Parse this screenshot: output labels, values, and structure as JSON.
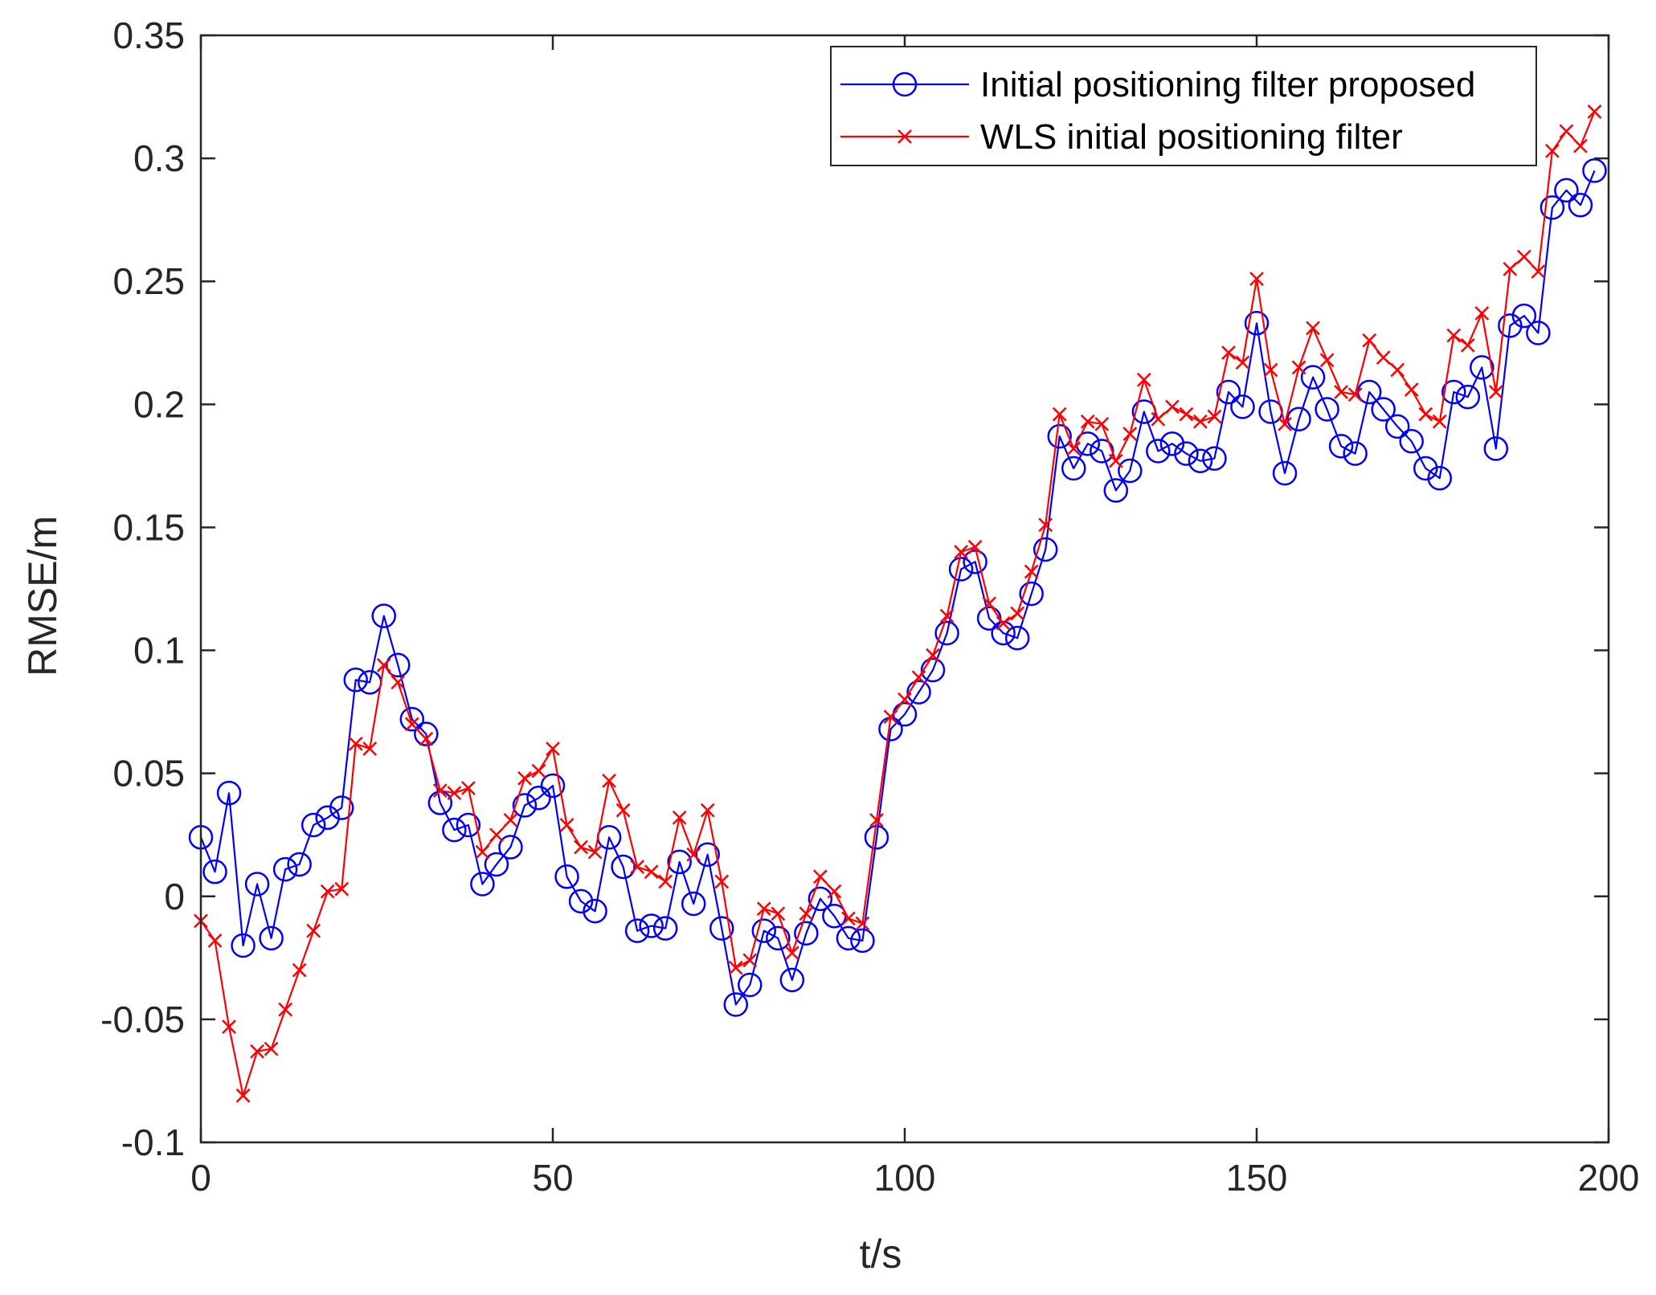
{
  "chart_data": {
    "type": "line",
    "title": "",
    "xlabel": "t/s",
    "ylabel": "RMSE/m",
    "xlim": [
      0,
      200
    ],
    "ylim": [
      -0.1,
      0.35
    ],
    "xticks": [
      0,
      50,
      100,
      150,
      200
    ],
    "xtick_labels": [
      "0",
      "50",
      "100",
      "150",
      "200"
    ],
    "yticks": [
      -0.1,
      -0.05,
      0,
      0.05,
      0.1,
      0.15,
      0.2,
      0.25,
      0.3,
      0.35
    ],
    "ytick_labels": [
      "-0.1",
      "-0.05",
      "0",
      "0.05",
      "0.1",
      "0.15",
      "0.2",
      "0.25",
      "0.3",
      "0.35"
    ],
    "grid": false,
    "legend_position": "top-right",
    "x": [
      0,
      2,
      4,
      6,
      8,
      10,
      12,
      14,
      16,
      18,
      20,
      22,
      24,
      26,
      28,
      30,
      32,
      34,
      36,
      38,
      40,
      42,
      44,
      46,
      48,
      50,
      52,
      54,
      56,
      58,
      60,
      62,
      64,
      66,
      68,
      70,
      72,
      74,
      76,
      78,
      80,
      82,
      84,
      86,
      88,
      90,
      92,
      94,
      96,
      98,
      100,
      102,
      104,
      106,
      108,
      110,
      112,
      114,
      116,
      118,
      120,
      122,
      124,
      126,
      128,
      130,
      132,
      134,
      136,
      138,
      140,
      142,
      144,
      146,
      148,
      150,
      152,
      154,
      156,
      158,
      160,
      162,
      164,
      166,
      168,
      170,
      172,
      174,
      176,
      178,
      180,
      182,
      184,
      186,
      188,
      190,
      192,
      194,
      196,
      198
    ],
    "series": [
      {
        "name": "Initial positioning filter proposed",
        "color": "#0000ff",
        "marker": "circle",
        "values": [
          0.024,
          0.01,
          0.042,
          -0.02,
          0.005,
          -0.017,
          0.011,
          0.013,
          0.029,
          0.032,
          0.036,
          0.088,
          0.087,
          0.114,
          0.094,
          0.072,
          0.066,
          0.038,
          0.027,
          0.029,
          0.005,
          0.013,
          0.02,
          0.037,
          0.04,
          0.045,
          0.008,
          -0.002,
          -0.006,
          0.024,
          0.012,
          -0.014,
          -0.012,
          -0.013,
          0.014,
          -0.003,
          0.017,
          -0.013,
          -0.044,
          -0.036,
          -0.014,
          -0.017,
          -0.034,
          -0.015,
          -0.001,
          -0.008,
          -0.017,
          -0.018,
          0.024,
          0.068,
          0.074,
          0.083,
          0.092,
          0.107,
          0.133,
          0.136,
          0.113,
          0.107,
          0.105,
          0.123,
          0.141,
          0.187,
          0.174,
          0.184,
          0.181,
          0.165,
          0.173,
          0.197,
          0.181,
          0.184,
          0.18,
          0.177,
          0.178,
          0.205,
          0.199,
          0.233,
          0.197,
          0.172,
          0.194,
          0.211,
          0.198,
          0.183,
          0.18,
          0.205,
          0.198,
          0.191,
          0.185,
          0.174,
          0.17,
          0.205,
          0.203,
          0.215,
          0.182,
          0.232,
          0.236,
          0.229,
          0.28,
          0.287,
          0.281,
          0.295
        ]
      },
      {
        "name": "WLS initial positioning filter",
        "color": "#ff0000",
        "marker": "x",
        "values": [
          -0.01,
          -0.018,
          -0.053,
          -0.081,
          -0.063,
          -0.062,
          -0.046,
          -0.03,
          -0.014,
          0.002,
          0.003,
          0.062,
          0.06,
          0.094,
          0.087,
          0.07,
          0.064,
          0.043,
          0.042,
          0.044,
          0.018,
          0.025,
          0.031,
          0.048,
          0.051,
          0.06,
          0.029,
          0.02,
          0.018,
          0.047,
          0.035,
          0.012,
          0.01,
          0.006,
          0.032,
          0.017,
          0.035,
          0.006,
          -0.029,
          -0.026,
          -0.005,
          -0.007,
          -0.023,
          -0.007,
          0.008,
          0.002,
          -0.009,
          -0.011,
          0.031,
          0.073,
          0.08,
          0.089,
          0.098,
          0.114,
          0.14,
          0.142,
          0.119,
          0.111,
          0.115,
          0.132,
          0.151,
          0.196,
          0.182,
          0.193,
          0.192,
          0.177,
          0.188,
          0.21,
          0.194,
          0.199,
          0.196,
          0.193,
          0.195,
          0.221,
          0.217,
          0.251,
          0.214,
          0.192,
          0.215,
          0.231,
          0.218,
          0.205,
          0.204,
          0.226,
          0.219,
          0.214,
          0.206,
          0.196,
          0.193,
          0.228,
          0.224,
          0.237,
          0.205,
          0.255,
          0.26,
          0.254,
          0.303,
          0.311,
          0.305,
          0.319
        ]
      }
    ]
  }
}
